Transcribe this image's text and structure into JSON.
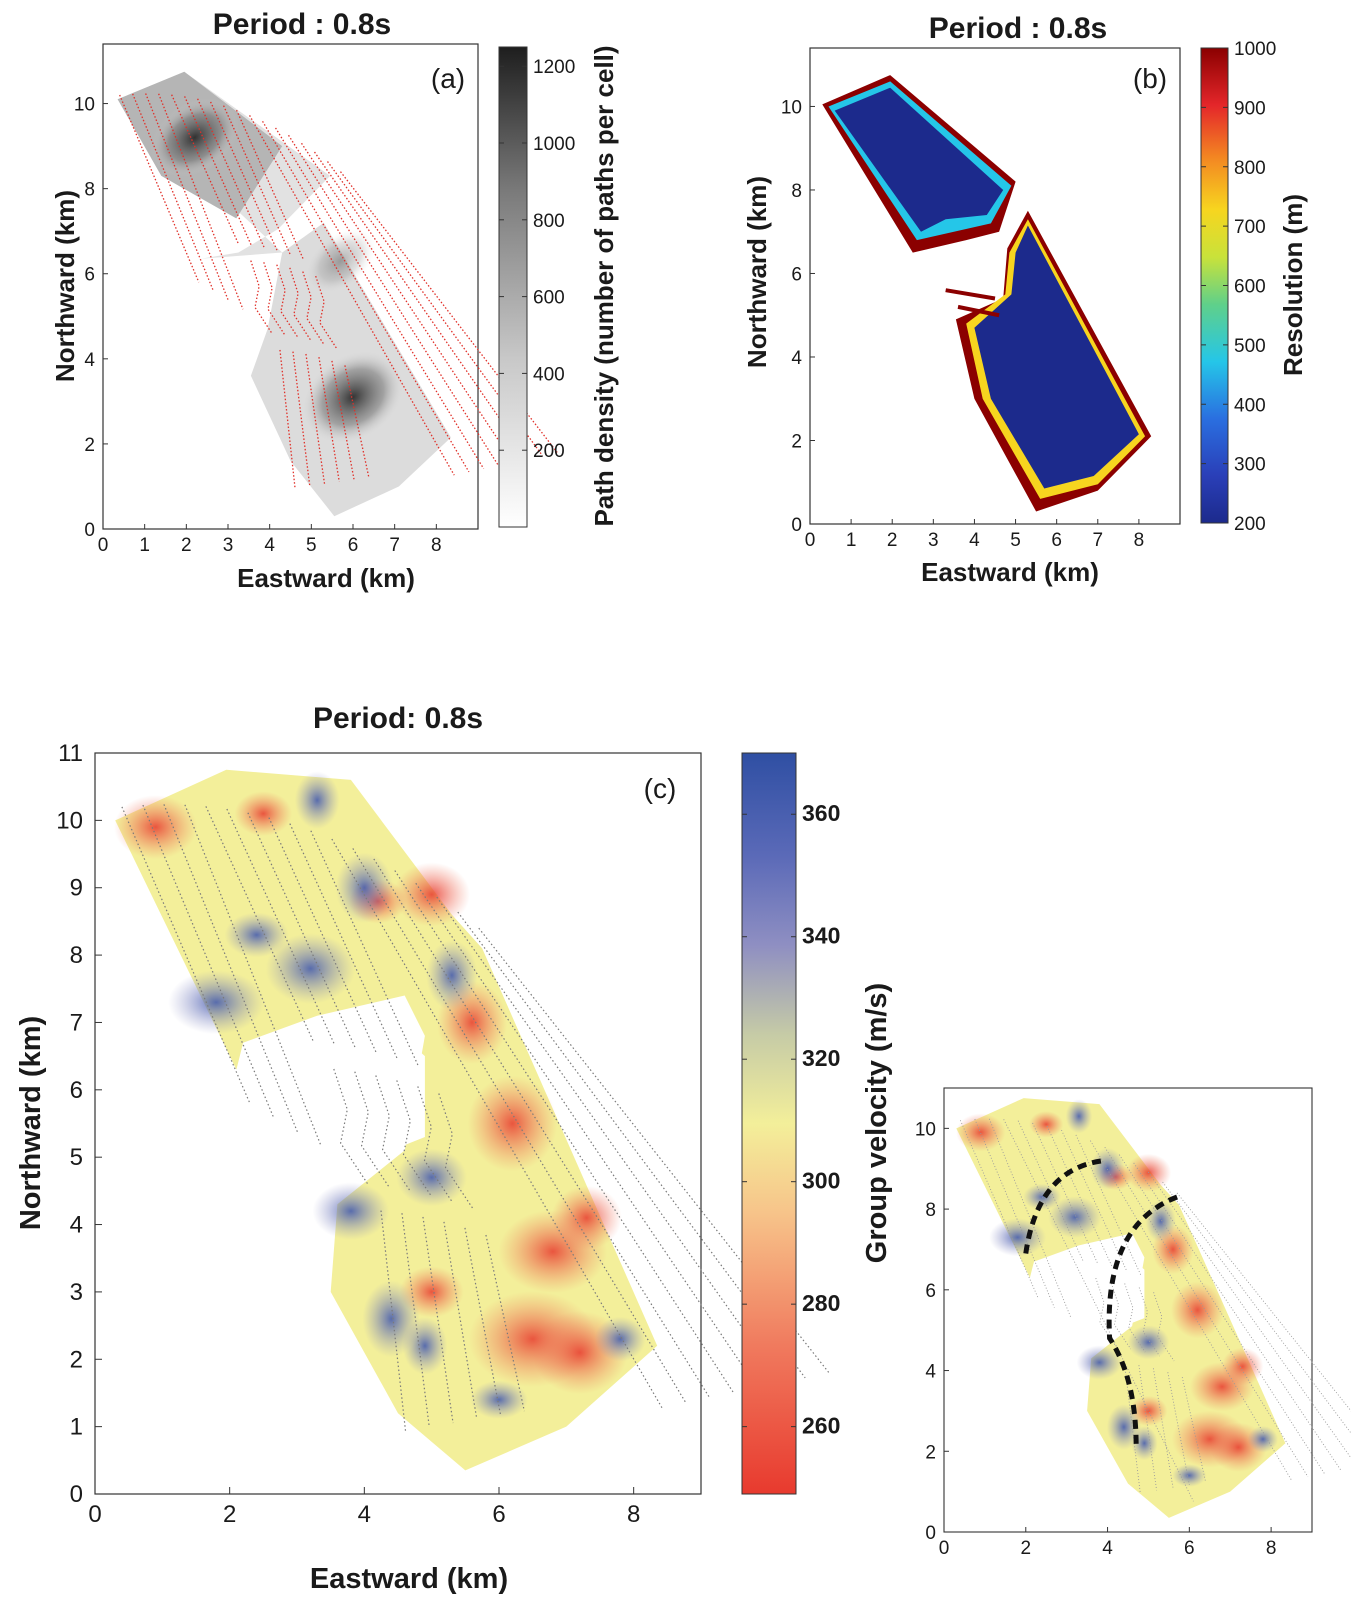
{
  "chart_data": [
    {
      "panel": "(a)",
      "type": "heatmap",
      "title": "Period : 0.8s",
      "xlabel": "Eastward (km)",
      "ylabel": "Northward (km)",
      "xlim": [
        0,
        9
      ],
      "ylim": [
        0,
        11.4
      ],
      "xticks": [
        "0",
        "1",
        "2",
        "3",
        "4",
        "5",
        "6",
        "7",
        "8"
      ],
      "yticks": [
        "0",
        "2",
        "4",
        "6",
        "8",
        "10"
      ],
      "colorbar": {
        "label": "Path density (number of paths per cell)",
        "colormap": "gray",
        "range": [
          0,
          1250
        ],
        "ticks": [
          "200",
          "400",
          "600",
          "800",
          "1000",
          "1200"
        ]
      },
      "overlay": "receiver lines (red dotted)"
    },
    {
      "panel": "(b)",
      "type": "heatmap",
      "title": "Period : 0.8s",
      "xlabel": "Eastward (km)",
      "ylabel": "Northward (km)",
      "xlim": [
        0,
        9
      ],
      "ylim": [
        0,
        11.4
      ],
      "xticks": [
        "0",
        "1",
        "2",
        "3",
        "4",
        "5",
        "6",
        "7",
        "8"
      ],
      "yticks": [
        "0",
        "2",
        "4",
        "6",
        "8",
        "10"
      ],
      "colorbar": {
        "label": "Resolution (m)",
        "colormap": "jet",
        "range": [
          200,
          1000
        ],
        "ticks": [
          "200",
          "300",
          "400",
          "500",
          "600",
          "700",
          "800",
          "900",
          "1000"
        ]
      }
    },
    {
      "panel": "(c)",
      "type": "heatmap",
      "title": "Period: 0.8s",
      "xlabel": "Eastward (km)",
      "ylabel": "Northward (km)",
      "xlim": [
        0,
        9
      ],
      "ylim": [
        0,
        11
      ],
      "xticks": [
        "0",
        "2",
        "4",
        "6",
        "8"
      ],
      "yticks": [
        "0",
        "1",
        "2",
        "3",
        "4",
        "5",
        "6",
        "7",
        "8",
        "9",
        "10",
        "11"
      ],
      "colorbar": {
        "label": "Group velocity (m/s)",
        "colormap": "red-yellow-blue",
        "range": [
          249,
          370
        ],
        "ticks": [
          "260",
          "280",
          "300",
          "320",
          "340",
          "360"
        ]
      },
      "overlay": "receiver lines (gray dotted)"
    },
    {
      "panel": "inset",
      "type": "heatmap",
      "xlim": [
        0,
        9
      ],
      "ylim": [
        0,
        11
      ],
      "xticks": [
        "0",
        "2",
        "4",
        "6",
        "8"
      ],
      "yticks": [
        "0",
        "2",
        "4",
        "6",
        "8",
        "10"
      ],
      "overlay": "two black dashed curves"
    }
  ],
  "colors": {
    "gray_dark": "#1e1e1e",
    "receiver_red": "#e0312a",
    "jet_low": "#1c2a8c",
    "jet_high": "#8b0000",
    "vel_red": "#e83a2e",
    "vel_yellow": "#f3ef9a",
    "vel_blue": "#2f4fa3"
  }
}
